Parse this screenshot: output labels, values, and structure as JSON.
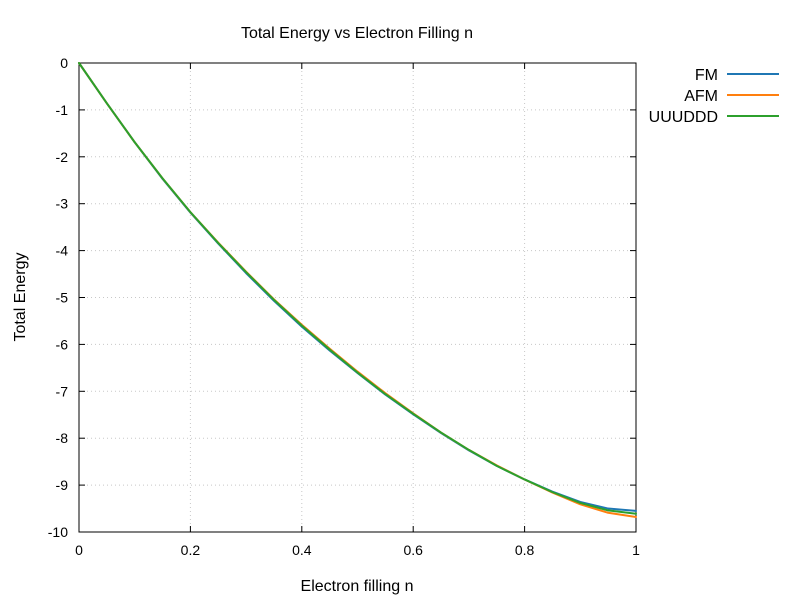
{
  "chart_data": {
    "type": "line",
    "title": "Total Energy vs Electron Filling n",
    "xlabel": "Electron filling n",
    "ylabel": "Total Energy",
    "xlim": [
      0,
      1
    ],
    "ylim": [
      -10,
      0
    ],
    "xticks": [
      0,
      0.2,
      0.4,
      0.6,
      0.8,
      1
    ],
    "xtick_labels": [
      "0",
      "0.2",
      "0.4",
      "0.6",
      "0.8",
      "1"
    ],
    "yticks": [
      0,
      -1,
      -2,
      -3,
      -4,
      -5,
      -6,
      -7,
      -8,
      -9,
      -10
    ],
    "ytick_labels": [
      "0",
      "-1",
      "-2",
      "-3",
      "-4",
      "-5",
      "-6",
      "-7",
      "-8",
      "-9",
      "-10"
    ],
    "grid": true,
    "legend_position": "outside-top-right",
    "x": [
      0,
      0.05,
      0.1,
      0.15,
      0.2,
      0.25,
      0.3,
      0.35,
      0.4,
      0.45,
      0.5,
      0.55,
      0.6,
      0.65,
      0.7,
      0.75,
      0.8,
      0.85,
      0.9,
      0.95,
      1.0
    ],
    "series": [
      {
        "name": "FM",
        "color": "#1f77b4",
        "values": [
          0,
          -0.86,
          -1.69,
          -2.47,
          -3.19,
          -3.85,
          -4.48,
          -5.07,
          -5.62,
          -6.13,
          -6.61,
          -7.07,
          -7.49,
          -7.89,
          -8.26,
          -8.59,
          -8.88,
          -9.14,
          -9.36,
          -9.5,
          -9.55
        ]
      },
      {
        "name": "AFM",
        "color": "#ff7f0e",
        "values": [
          0,
          -0.86,
          -1.69,
          -2.46,
          -3.18,
          -3.83,
          -4.45,
          -5.04,
          -5.58,
          -6.09,
          -6.58,
          -7.04,
          -7.47,
          -7.88,
          -8.25,
          -8.58,
          -8.88,
          -9.16,
          -9.41,
          -9.59,
          -9.68
        ]
      },
      {
        "name": "UUUDDD",
        "color": "#2ca02c",
        "values": [
          0,
          -0.86,
          -1.69,
          -2.46,
          -3.18,
          -3.84,
          -4.46,
          -5.05,
          -5.6,
          -6.11,
          -6.6,
          -7.06,
          -7.48,
          -7.88,
          -8.25,
          -8.59,
          -8.88,
          -9.15,
          -9.38,
          -9.54,
          -9.61
        ]
      }
    ]
  }
}
